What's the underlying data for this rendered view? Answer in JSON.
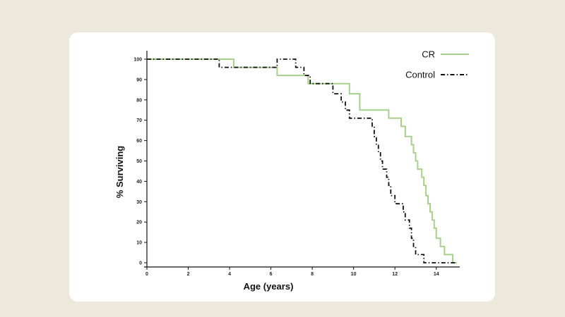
{
  "chart_data": {
    "type": "line",
    "subtype": "kaplan-meier-step",
    "title": "",
    "xlabel": "Age (years)",
    "ylabel": "% Surviving",
    "xlim": [
      0,
      15
    ],
    "ylim": [
      0,
      100
    ],
    "x_ticks": [
      0,
      2,
      4,
      6,
      8,
      10,
      12,
      14
    ],
    "y_ticks": [
      0,
      10,
      20,
      30,
      40,
      50,
      60,
      70,
      80,
      90,
      100
    ],
    "grid": false,
    "legend_position": "top-right",
    "series": [
      {
        "name": "CR",
        "color": "#a8d08d",
        "line_style": "solid",
        "points": [
          [
            0,
            100
          ],
          [
            4.2,
            100
          ],
          [
            4.2,
            96
          ],
          [
            6.3,
            96
          ],
          [
            6.3,
            92
          ],
          [
            7.8,
            92
          ],
          [
            7.8,
            88
          ],
          [
            9.8,
            88
          ],
          [
            9.8,
            83
          ],
          [
            10.3,
            83
          ],
          [
            10.3,
            75
          ],
          [
            11.7,
            75
          ],
          [
            11.7,
            71
          ],
          [
            12.3,
            71
          ],
          [
            12.3,
            67
          ],
          [
            12.5,
            67
          ],
          [
            12.5,
            62
          ],
          [
            12.8,
            62
          ],
          [
            12.8,
            58
          ],
          [
            12.9,
            58
          ],
          [
            12.9,
            54
          ],
          [
            13.0,
            54
          ],
          [
            13.0,
            50
          ],
          [
            13.1,
            50
          ],
          [
            13.1,
            46
          ],
          [
            13.3,
            46
          ],
          [
            13.3,
            42
          ],
          [
            13.4,
            42
          ],
          [
            13.4,
            38
          ],
          [
            13.5,
            38
          ],
          [
            13.5,
            33
          ],
          [
            13.6,
            33
          ],
          [
            13.6,
            29
          ],
          [
            13.7,
            29
          ],
          [
            13.7,
            25
          ],
          [
            13.8,
            25
          ],
          [
            13.8,
            21
          ],
          [
            13.9,
            21
          ],
          [
            13.9,
            17
          ],
          [
            14.0,
            17
          ],
          [
            14.0,
            12
          ],
          [
            14.2,
            12
          ],
          [
            14.2,
            8
          ],
          [
            14.4,
            8
          ],
          [
            14.4,
            4
          ],
          [
            14.8,
            4
          ],
          [
            14.8,
            0
          ],
          [
            15.0,
            0
          ]
        ]
      },
      {
        "name": "Control",
        "color": "#111111",
        "line_style": "dash-dot",
        "points": [
          [
            0,
            100
          ],
          [
            3.5,
            100
          ],
          [
            3.5,
            96
          ],
          [
            4.2,
            96
          ],
          [
            4.2,
            96
          ],
          [
            6.3,
            96
          ],
          [
            6.3,
            100
          ],
          [
            7.2,
            100
          ],
          [
            7.2,
            96
          ],
          [
            7.6,
            96
          ],
          [
            7.6,
            92
          ],
          [
            7.9,
            92
          ],
          [
            7.9,
            88
          ],
          [
            9.0,
            88
          ],
          [
            9.0,
            83
          ],
          [
            9.4,
            83
          ],
          [
            9.4,
            79
          ],
          [
            9.6,
            79
          ],
          [
            9.6,
            75
          ],
          [
            9.8,
            75
          ],
          [
            9.8,
            71
          ],
          [
            10.9,
            71
          ],
          [
            10.9,
            67
          ],
          [
            11.0,
            67
          ],
          [
            11.0,
            62
          ],
          [
            11.1,
            62
          ],
          [
            11.1,
            58
          ],
          [
            11.2,
            58
          ],
          [
            11.2,
            54
          ],
          [
            11.3,
            54
          ],
          [
            11.3,
            50
          ],
          [
            11.4,
            50
          ],
          [
            11.4,
            46
          ],
          [
            11.6,
            46
          ],
          [
            11.6,
            42
          ],
          [
            11.7,
            42
          ],
          [
            11.7,
            38
          ],
          [
            11.8,
            38
          ],
          [
            11.8,
            33
          ],
          [
            12.0,
            33
          ],
          [
            12.0,
            29
          ],
          [
            12.4,
            29
          ],
          [
            12.4,
            25
          ],
          [
            12.5,
            25
          ],
          [
            12.5,
            21
          ],
          [
            12.7,
            21
          ],
          [
            12.7,
            17
          ],
          [
            12.8,
            17
          ],
          [
            12.8,
            12
          ],
          [
            12.9,
            12
          ],
          [
            12.9,
            8
          ],
          [
            13.0,
            8
          ],
          [
            13.0,
            4
          ],
          [
            13.4,
            4
          ],
          [
            13.4,
            0
          ],
          [
            15.0,
            0
          ]
        ]
      }
    ]
  }
}
